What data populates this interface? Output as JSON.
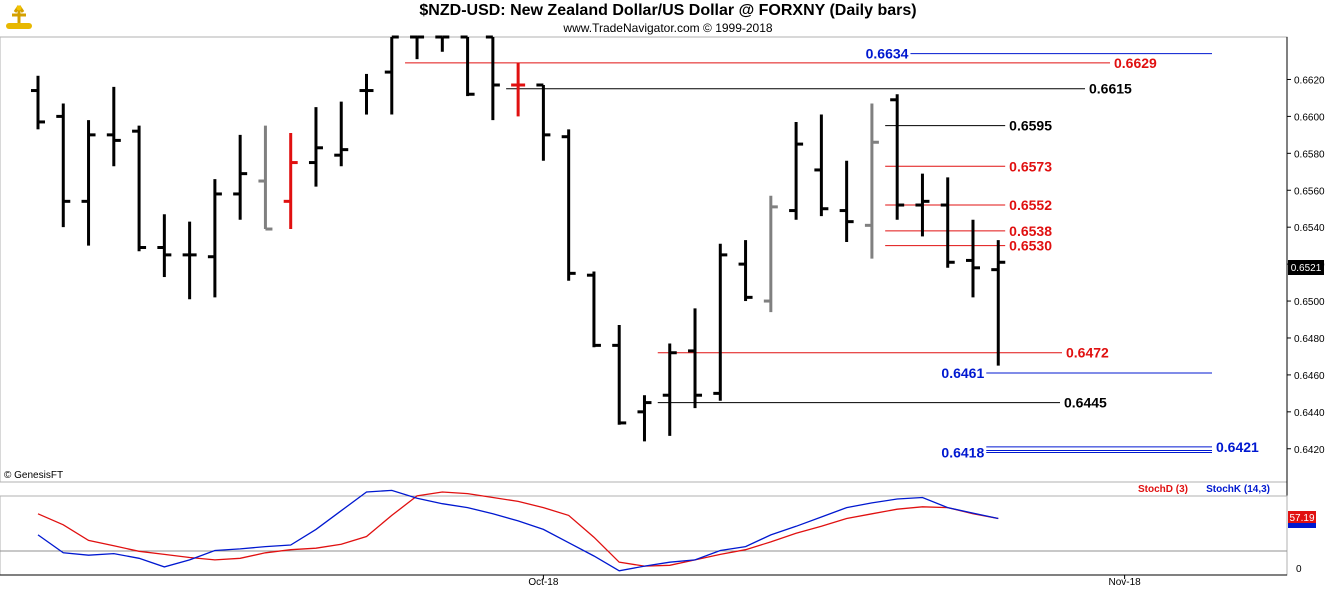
{
  "header": {
    "title": "$NZD-USD:  New Zealand Dollar/US Dollar @ FORXNY  (Daily bars)",
    "subtitle": "www.TradeNavigator.com © 1999-2018"
  },
  "footer": {
    "copyright": "© GenesisFT"
  },
  "colors": {
    "bar": "#000000",
    "gray_bar": "#808080",
    "red_bar": "#e01010",
    "blue": "#0018d0",
    "red": "#e01010",
    "black": "#000000"
  },
  "chart_data": [
    {
      "type": "ohlc",
      "title": "$NZD-USD:  New Zealand Dollar/US Dollar @ FORXNY  (Daily bars)",
      "ylim": [
        0.6402,
        0.6643
      ],
      "y_ticks": [
        "0.6620",
        "0.6600",
        "0.6580",
        "0.6560",
        "0.6540",
        "0.6520",
        "0.6500",
        "0.6480",
        "0.6460",
        "0.6440",
        "0.6420"
      ],
      "y_tick_values": [
        0.662,
        0.66,
        0.658,
        0.656,
        0.654,
        0.652,
        0.65,
        0.648,
        0.646,
        0.644,
        0.642
      ],
      "x_labels": [
        {
          "label": "Oct-18",
          "index": 20
        },
        {
          "label": "Nov-18",
          "index": 43
        }
      ],
      "last_price": "0.6521",
      "bars": [
        {
          "o": 0.6614,
          "h": 0.6622,
          "l": 0.6593,
          "c": 0.6597,
          "color": "black"
        },
        {
          "o": 0.66,
          "h": 0.6607,
          "l": 0.654,
          "c": 0.6554,
          "color": "black"
        },
        {
          "o": 0.6554,
          "h": 0.6598,
          "l": 0.653,
          "c": 0.659,
          "color": "black"
        },
        {
          "o": 0.659,
          "h": 0.6616,
          "l": 0.6573,
          "c": 0.6587,
          "color": "black"
        },
        {
          "o": 0.6592,
          "h": 0.6595,
          "l": 0.6527,
          "c": 0.6529,
          "color": "black"
        },
        {
          "o": 0.6529,
          "h": 0.6547,
          "l": 0.6513,
          "c": 0.6525,
          "color": "black"
        },
        {
          "o": 0.6525,
          "h": 0.6543,
          "l": 0.6501,
          "c": 0.6525,
          "color": "black"
        },
        {
          "o": 0.6524,
          "h": 0.6566,
          "l": 0.6502,
          "c": 0.6558,
          "color": "black"
        },
        {
          "o": 0.6558,
          "h": 0.659,
          "l": 0.6544,
          "c": 0.6569,
          "color": "black"
        },
        {
          "o": 0.6565,
          "h": 0.6595,
          "l": 0.6539,
          "c": 0.6539,
          "color": "gray"
        },
        {
          "o": 0.6554,
          "h": 0.6591,
          "l": 0.6539,
          "c": 0.6575,
          "color": "red"
        },
        {
          "o": 0.6575,
          "h": 0.6605,
          "l": 0.6562,
          "c": 0.6583,
          "color": "black"
        },
        {
          "o": 0.6579,
          "h": 0.6608,
          "l": 0.6573,
          "c": 0.6582,
          "color": "black"
        },
        {
          "o": 0.6614,
          "h": 0.6623,
          "l": 0.6601,
          "c": 0.6614,
          "color": "black"
        },
        {
          "o": 0.6624,
          "h": 0.6643,
          "l": 0.6601,
          "c": 0.6643,
          "color": "black"
        },
        {
          "o": 0.6643,
          "h": 0.6643,
          "l": 0.6631,
          "c": 0.6643,
          "color": "black"
        },
        {
          "o": 0.6643,
          "h": 0.6643,
          "l": 0.6635,
          "c": 0.6643,
          "color": "black"
        },
        {
          "o": 0.6643,
          "h": 0.6643,
          "l": 0.6611,
          "c": 0.6612,
          "color": "black"
        },
        {
          "o": 0.6643,
          "h": 0.6643,
          "l": 0.6598,
          "c": 0.6617,
          "color": "black"
        },
        {
          "o": 0.6617,
          "h": 0.6629,
          "l": 0.66,
          "c": 0.6617,
          "color": "red"
        },
        {
          "o": 0.6617,
          "h": 0.6617,
          "l": 0.6576,
          "c": 0.659,
          "color": "black"
        },
        {
          "o": 0.6589,
          "h": 0.6593,
          "l": 0.6511,
          "c": 0.6515,
          "color": "black"
        },
        {
          "o": 0.6514,
          "h": 0.6516,
          "l": 0.6475,
          "c": 0.6476,
          "color": "black"
        },
        {
          "o": 0.6476,
          "h": 0.6487,
          "l": 0.6433,
          "c": 0.6434,
          "color": "black"
        },
        {
          "o": 0.644,
          "h": 0.6449,
          "l": 0.6424,
          "c": 0.6445,
          "color": "black"
        },
        {
          "o": 0.6449,
          "h": 0.6477,
          "l": 0.6427,
          "c": 0.6472,
          "color": "black"
        },
        {
          "o": 0.6473,
          "h": 0.6496,
          "l": 0.6442,
          "c": 0.6449,
          "color": "black"
        },
        {
          "o": 0.645,
          "h": 0.6531,
          "l": 0.6446,
          "c": 0.6525,
          "color": "black"
        },
        {
          "o": 0.652,
          "h": 0.6533,
          "l": 0.65,
          "c": 0.6502,
          "color": "black"
        },
        {
          "o": 0.65,
          "h": 0.6557,
          "l": 0.6494,
          "c": 0.6551,
          "color": "gray"
        },
        {
          "o": 0.6549,
          "h": 0.6597,
          "l": 0.6544,
          "c": 0.6585,
          "color": "black"
        },
        {
          "o": 0.6571,
          "h": 0.6601,
          "l": 0.6546,
          "c": 0.655,
          "color": "black"
        },
        {
          "o": 0.6549,
          "h": 0.6576,
          "l": 0.6532,
          "c": 0.6543,
          "color": "black"
        },
        {
          "o": 0.6541,
          "h": 0.6607,
          "l": 0.6523,
          "c": 0.6586,
          "color": "gray"
        },
        {
          "o": 0.6609,
          "h": 0.6612,
          "l": 0.6544,
          "c": 0.6552,
          "color": "black"
        },
        {
          "o": 0.6552,
          "h": 0.6569,
          "l": 0.6535,
          "c": 0.6554,
          "color": "black"
        },
        {
          "o": 0.6552,
          "h": 0.6567,
          "l": 0.6518,
          "c": 0.6521,
          "color": "black"
        },
        {
          "o": 0.6522,
          "h": 0.6544,
          "l": 0.6502,
          "c": 0.6518,
          "color": "black"
        },
        {
          "o": 0.6517,
          "h": 0.6533,
          "l": 0.6465,
          "c": 0.6521,
          "color": "black"
        }
      ],
      "levels": [
        {
          "value": "0.6634",
          "y": 0.6634,
          "color": "blue",
          "from": 35,
          "label_side": "left"
        },
        {
          "value": "0.6629",
          "y": 0.6629,
          "color": "red",
          "from": 15,
          "label_side": "right"
        },
        {
          "value": "0.6615",
          "y": 0.6615,
          "color": "black",
          "from": 19,
          "label_side": "right"
        },
        {
          "value": "0.6595",
          "y": 0.6595,
          "color": "black",
          "from": 34,
          "label_side": "right"
        },
        {
          "value": "0.6573",
          "y": 0.6573,
          "color": "red",
          "from": 34,
          "label_side": "right"
        },
        {
          "value": "0.6552",
          "y": 0.6552,
          "color": "red",
          "from": 34,
          "label_side": "right"
        },
        {
          "value": "0.6538",
          "y": 0.6538,
          "color": "red",
          "from": 34,
          "label_side": "right"
        },
        {
          "value": "0.6530",
          "y": 0.653,
          "color": "red",
          "from": 34,
          "label_side": "right"
        },
        {
          "value": "0.6472",
          "y": 0.6472,
          "color": "red",
          "from": 25,
          "label_side": "right"
        },
        {
          "value": "0.6461",
          "y": 0.6461,
          "color": "blue",
          "from": 38,
          "label_side": "left"
        },
        {
          "value": "0.6445",
          "y": 0.6445,
          "color": "black",
          "from": 25,
          "label_side": "right"
        },
        {
          "value": "0.6421",
          "y": 0.6421,
          "color": "blue",
          "from": 38,
          "label_side": "right"
        },
        {
          "value": "0.6418",
          "y": 0.6418,
          "color": "blue",
          "from": 38,
          "label_side": "left"
        }
      ]
    },
    {
      "type": "line",
      "ylim": [
        0,
        100
      ],
      "y_ticks": [
        "0"
      ],
      "y_tick_values": [
        0
      ],
      "legend": [
        "StochD (3)",
        "StochK (14,3)"
      ],
      "last_value": "57.19",
      "series": [
        {
          "name": "StochD (3)",
          "color": "red",
          "values": [
            72,
            58,
            38,
            31,
            24,
            20,
            16,
            13,
            15,
            22,
            26,
            28,
            33,
            43,
            70,
            95,
            100,
            98,
            93,
            88,
            80,
            70,
            42,
            10,
            5,
            6,
            13,
            20,
            26,
            36,
            47,
            56,
            66,
            72,
            78,
            81,
            80,
            72,
            66
          ]
        },
        {
          "name": "StochK (14,3)",
          "color": "blue",
          "values": [
            45,
            22,
            19,
            21,
            15,
            4,
            13,
            25,
            27,
            30,
            32,
            52,
            76,
            100,
            102,
            92,
            85,
            80,
            72,
            63,
            52,
            35,
            18,
            -1,
            5,
            10,
            13,
            25,
            30,
            45,
            56,
            68,
            80,
            86,
            91,
            93,
            80,
            73,
            66
          ]
        }
      ]
    }
  ]
}
